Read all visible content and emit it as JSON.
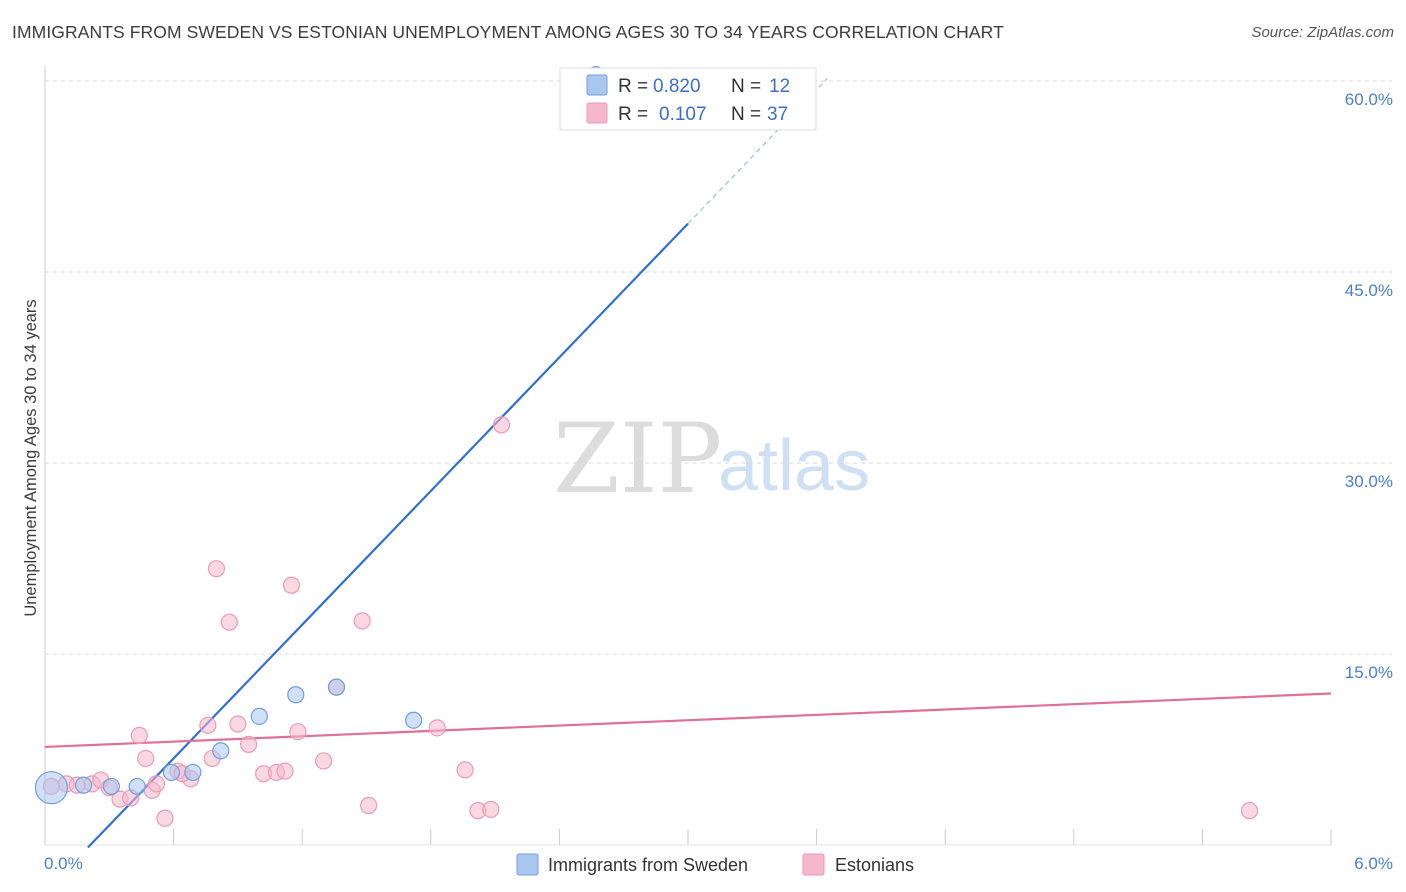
{
  "title": "IMMIGRANTS FROM SWEDEN VS ESTONIAN UNEMPLOYMENT AMONG AGES 30 TO 34 YEARS CORRELATION CHART",
  "source": "Source: ZipAtlas.com",
  "watermark": {
    "zip": "ZIP",
    "atlas": "atlas"
  },
  "colors": {
    "blue_fill": "#a9c6ee",
    "blue_stroke": "#6f9fe0",
    "blue_line": "#2e6fd6",
    "pink_fill": "#f5b8cb",
    "pink_stroke": "#ec9ab5",
    "pink_line": "#e0709a",
    "grid": "#d8d8d8",
    "axis_text": "#4a7fd0"
  },
  "legend": {
    "rows": [
      {
        "r_label": "R =",
        "r_value": "0.820",
        "n_label": "N =",
        "n_value": "12"
      },
      {
        "r_label": "R =",
        "r_value": "0.107",
        "n_label": "N =",
        "n_value": "37"
      }
    ]
  },
  "chart_data": {
    "type": "scatter",
    "title": "IMMIGRANTS FROM SWEDEN VS ESTONIAN UNEMPLOYMENT AMONG AGES 30 TO 34 YEARS CORRELATION CHART",
    "xlabel": "",
    "ylabel": "Unemployment Among Ages 30 to 34 years",
    "xlim": [
      0,
      6
    ],
    "ylim": [
      0,
      60
    ],
    "x_tick_labels": [
      "0.0%",
      "6.0%"
    ],
    "y_ticks": [
      15,
      30,
      45,
      60
    ],
    "y_tick_labels": [
      "15.0%",
      "30.0%",
      "45.0%",
      "60.0%"
    ],
    "grid": true,
    "legend_position": "top-center",
    "series": [
      {
        "name": "Immigrants from Sweden",
        "r": 0.82,
        "n": 12,
        "points": [
          {
            "x": 0.03,
            "y": 4.5,
            "big": true
          },
          {
            "x": 0.18,
            "y": 4.7
          },
          {
            "x": 0.31,
            "y": 4.6
          },
          {
            "x": 0.43,
            "y": 4.6
          },
          {
            "x": 0.59,
            "y": 5.7
          },
          {
            "x": 0.69,
            "y": 5.7
          },
          {
            "x": 0.82,
            "y": 7.4
          },
          {
            "x": 1.0,
            "y": 10.1
          },
          {
            "x": 1.17,
            "y": 11.8
          },
          {
            "x": 1.36,
            "y": 12.4
          },
          {
            "x": 1.72,
            "y": 9.8
          },
          {
            "x": 2.57,
            "y": 60.5
          }
        ],
        "trend": {
          "x0": 0.2,
          "y0": -0.2,
          "x1": 3.0,
          "y1": 48.8,
          "dash_x1": 3.65,
          "dash_y1": 60.2
        }
      },
      {
        "name": "Estonians",
        "r": 0.107,
        "n": 37,
        "points": [
          {
            "x": 0.03,
            "y": 4.6
          },
          {
            "x": 0.1,
            "y": 4.8
          },
          {
            "x": 0.15,
            "y": 4.7
          },
          {
            "x": 0.22,
            "y": 4.8
          },
          {
            "x": 0.26,
            "y": 5.1
          },
          {
            "x": 0.3,
            "y": 4.5
          },
          {
            "x": 0.35,
            "y": 3.6
          },
          {
            "x": 0.4,
            "y": 3.7
          },
          {
            "x": 0.44,
            "y": 8.6
          },
          {
            "x": 0.47,
            "y": 6.8
          },
          {
            "x": 0.5,
            "y": 4.3
          },
          {
            "x": 0.52,
            "y": 4.8
          },
          {
            "x": 0.56,
            "y": 2.1
          },
          {
            "x": 0.62,
            "y": 5.8
          },
          {
            "x": 0.68,
            "y": 5.2
          },
          {
            "x": 0.76,
            "y": 9.4
          },
          {
            "x": 0.78,
            "y": 6.8
          },
          {
            "x": 0.8,
            "y": 21.7
          },
          {
            "x": 0.86,
            "y": 17.5
          },
          {
            "x": 0.9,
            "y": 9.5
          },
          {
            "x": 0.95,
            "y": 7.9
          },
          {
            "x": 1.02,
            "y": 5.6
          },
          {
            "x": 1.08,
            "y": 5.7
          },
          {
            "x": 1.12,
            "y": 5.8
          },
          {
            "x": 1.15,
            "y": 20.4
          },
          {
            "x": 1.18,
            "y": 8.9
          },
          {
            "x": 1.3,
            "y": 6.6
          },
          {
            "x": 1.36,
            "y": 12.4
          },
          {
            "x": 1.48,
            "y": 17.6
          },
          {
            "x": 1.51,
            "y": 3.1
          },
          {
            "x": 1.83,
            "y": 9.2
          },
          {
            "x": 1.96,
            "y": 5.9
          },
          {
            "x": 2.02,
            "y": 2.7
          },
          {
            "x": 2.08,
            "y": 2.8
          },
          {
            "x": 2.13,
            "y": 33.0
          },
          {
            "x": 5.62,
            "y": 2.7
          },
          {
            "x": 0.64,
            "y": 5.6
          }
        ],
        "trend": {
          "x0": 0,
          "y0": 7.7,
          "x1": 6.0,
          "y1": 11.9
        }
      }
    ]
  }
}
